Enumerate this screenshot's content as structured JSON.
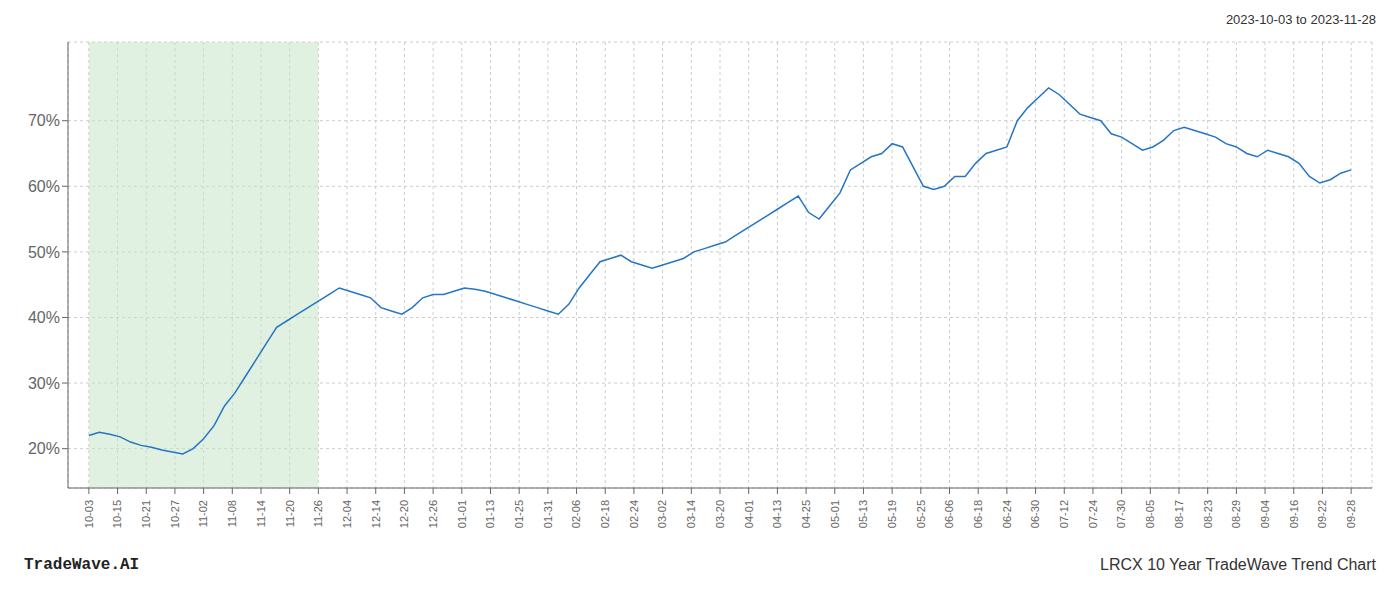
{
  "chart_data": {
    "type": "line",
    "title": "LRCX 10 Year TradeWave Trend Chart",
    "subtitle": "2023-10-03 to 2023-11-28",
    "annotations": [
      "TradeWave.AI"
    ],
    "color": "#2575C4",
    "grid": true,
    "x": [
      0,
      1,
      2,
      3,
      4,
      5,
      6,
      7,
      8,
      9,
      10,
      11,
      12,
      13,
      14,
      15,
      16,
      17,
      18,
      19,
      20,
      21,
      22,
      23,
      24,
      25,
      26,
      27,
      28,
      29,
      30,
      31,
      32,
      33,
      34,
      35,
      36,
      37,
      38,
      39,
      40,
      41,
      42,
      43,
      44,
      45,
      46,
      47,
      48,
      49,
      50,
      51,
      52,
      53,
      54,
      55,
      56,
      57,
      58,
      59,
      60,
      61,
      62,
      63,
      64,
      65,
      66,
      67,
      68,
      69,
      70,
      71,
      72,
      73,
      74,
      75,
      76,
      77,
      78,
      79,
      80,
      81,
      82,
      83,
      84,
      85,
      86,
      87,
      88,
      89,
      90,
      91,
      92,
      93,
      94,
      95,
      96,
      97,
      98,
      99,
      100,
      101,
      102,
      103,
      104,
      105,
      106,
      107,
      108,
      109,
      110,
      111,
      112,
      113,
      114,
      115,
      116,
      117,
      118,
      119,
      120,
      121
    ],
    "values": [
      22.0,
      22.5,
      22.2,
      21.8,
      21.0,
      20.5,
      20.2,
      19.8,
      19.5,
      19.2,
      20.0,
      21.5,
      23.5,
      26.5,
      28.5,
      31.0,
      33.5,
      36.0,
      38.5,
      39.5,
      40.5,
      41.5,
      42.5,
      43.5,
      44.5,
      44.0,
      43.5,
      43.0,
      41.5,
      41.0,
      40.5,
      41.5,
      43.0,
      43.5,
      43.5,
      44.0,
      44.5,
      44.3,
      44.0,
      43.5,
      43.0,
      42.5,
      42.0,
      41.5,
      41.0,
      40.5,
      42.0,
      44.5,
      46.5,
      48.5,
      49.0,
      49.5,
      48.5,
      48.0,
      47.5,
      48.0,
      48.5,
      49.0,
      50.0,
      50.5,
      51.0,
      51.5,
      52.5,
      53.5,
      54.5,
      55.5,
      56.5,
      57.5,
      58.5,
      56.0,
      55.0,
      57.0,
      59.0,
      62.5,
      63.5,
      64.5,
      65.0,
      66.5,
      66.0,
      63.0,
      60.0,
      59.5,
      60.0,
      61.5,
      61.5,
      63.5,
      65.0,
      65.5,
      66.0,
      70.0,
      72.0,
      73.5,
      75.0,
      74.0,
      72.5,
      71.0,
      70.5,
      70.0,
      68.0,
      67.5,
      66.5,
      65.5,
      66.0,
      67.0,
      68.5,
      69.0,
      68.5,
      68.0,
      67.5,
      66.5,
      66.0,
      65.0,
      64.5,
      65.5,
      65.0,
      64.5,
      63.5,
      61.5,
      60.5,
      61.0,
      62.0,
      62.5
    ],
    "xlim": [
      -2,
      123
    ],
    "xticks": [
      {
        "value": 0,
        "label": "10-03"
      },
      {
        "value": 2.75,
        "label": "10-15"
      },
      {
        "value": 5.5,
        "label": "10-21"
      },
      {
        "value": 8.25,
        "label": "10-27"
      },
      {
        "value": 11,
        "label": "11-02"
      },
      {
        "value": 13.75,
        "label": "11-08"
      },
      {
        "value": 16.5,
        "label": "11-14"
      },
      {
        "value": 19.25,
        "label": "11-20"
      },
      {
        "value": 22,
        "label": "11-26"
      },
      {
        "value": 24.75,
        "label": "12-04"
      },
      {
        "value": 27.5,
        "label": "12-14"
      },
      {
        "value": 30.25,
        "label": "12-20"
      },
      {
        "value": 33,
        "label": "12-26"
      },
      {
        "value": 35.75,
        "label": "01-01"
      },
      {
        "value": 38.5,
        "label": "01-13"
      },
      {
        "value": 41.25,
        "label": "01-25"
      },
      {
        "value": 44,
        "label": "01-31"
      },
      {
        "value": 46.75,
        "label": "02-06"
      },
      {
        "value": 49.5,
        "label": "02-18"
      },
      {
        "value": 52.25,
        "label": "02-24"
      },
      {
        "value": 55,
        "label": "03-02"
      },
      {
        "value": 57.75,
        "label": "03-14"
      },
      {
        "value": 60.5,
        "label": "03-20"
      },
      {
        "value": 63.25,
        "label": "04-01"
      },
      {
        "value": 66,
        "label": "04-13"
      },
      {
        "value": 68.75,
        "label": "04-25"
      },
      {
        "value": 71.5,
        "label": "05-01"
      },
      {
        "value": 74.25,
        "label": "05-13"
      },
      {
        "value": 77,
        "label": "05-19"
      },
      {
        "value": 79.75,
        "label": "05-25"
      },
      {
        "value": 82.5,
        "label": "06-06"
      },
      {
        "value": 85.25,
        "label": "06-18"
      },
      {
        "value": 88,
        "label": "06-24"
      },
      {
        "value": 90.75,
        "label": "06-30"
      },
      {
        "value": 93.5,
        "label": "07-12"
      },
      {
        "value": 96.25,
        "label": "07-24"
      },
      {
        "value": 99,
        "label": "07-30"
      },
      {
        "value": 101.75,
        "label": "08-05"
      },
      {
        "value": 104.5,
        "label": "08-17"
      },
      {
        "value": 107.25,
        "label": "08-23"
      },
      {
        "value": 110,
        "label": "08-29"
      },
      {
        "value": 112.75,
        "label": "09-04"
      },
      {
        "value": 115.5,
        "label": "09-16"
      },
      {
        "value": 118.25,
        "label": "09-22"
      },
      {
        "value": 121,
        "label": "09-28"
      }
    ],
    "ylim": [
      14,
      82
    ],
    "yticks": [
      {
        "value": 20,
        "label": "20%"
      },
      {
        "value": 30,
        "label": "30%"
      },
      {
        "value": 40,
        "label": "40%"
      },
      {
        "value": 50,
        "label": "50%"
      },
      {
        "value": 60,
        "label": "60%"
      },
      {
        "value": 70,
        "label": "70%"
      }
    ],
    "shade": {
      "start": 0,
      "end": 22,
      "color": "#c8e6c9"
    }
  }
}
